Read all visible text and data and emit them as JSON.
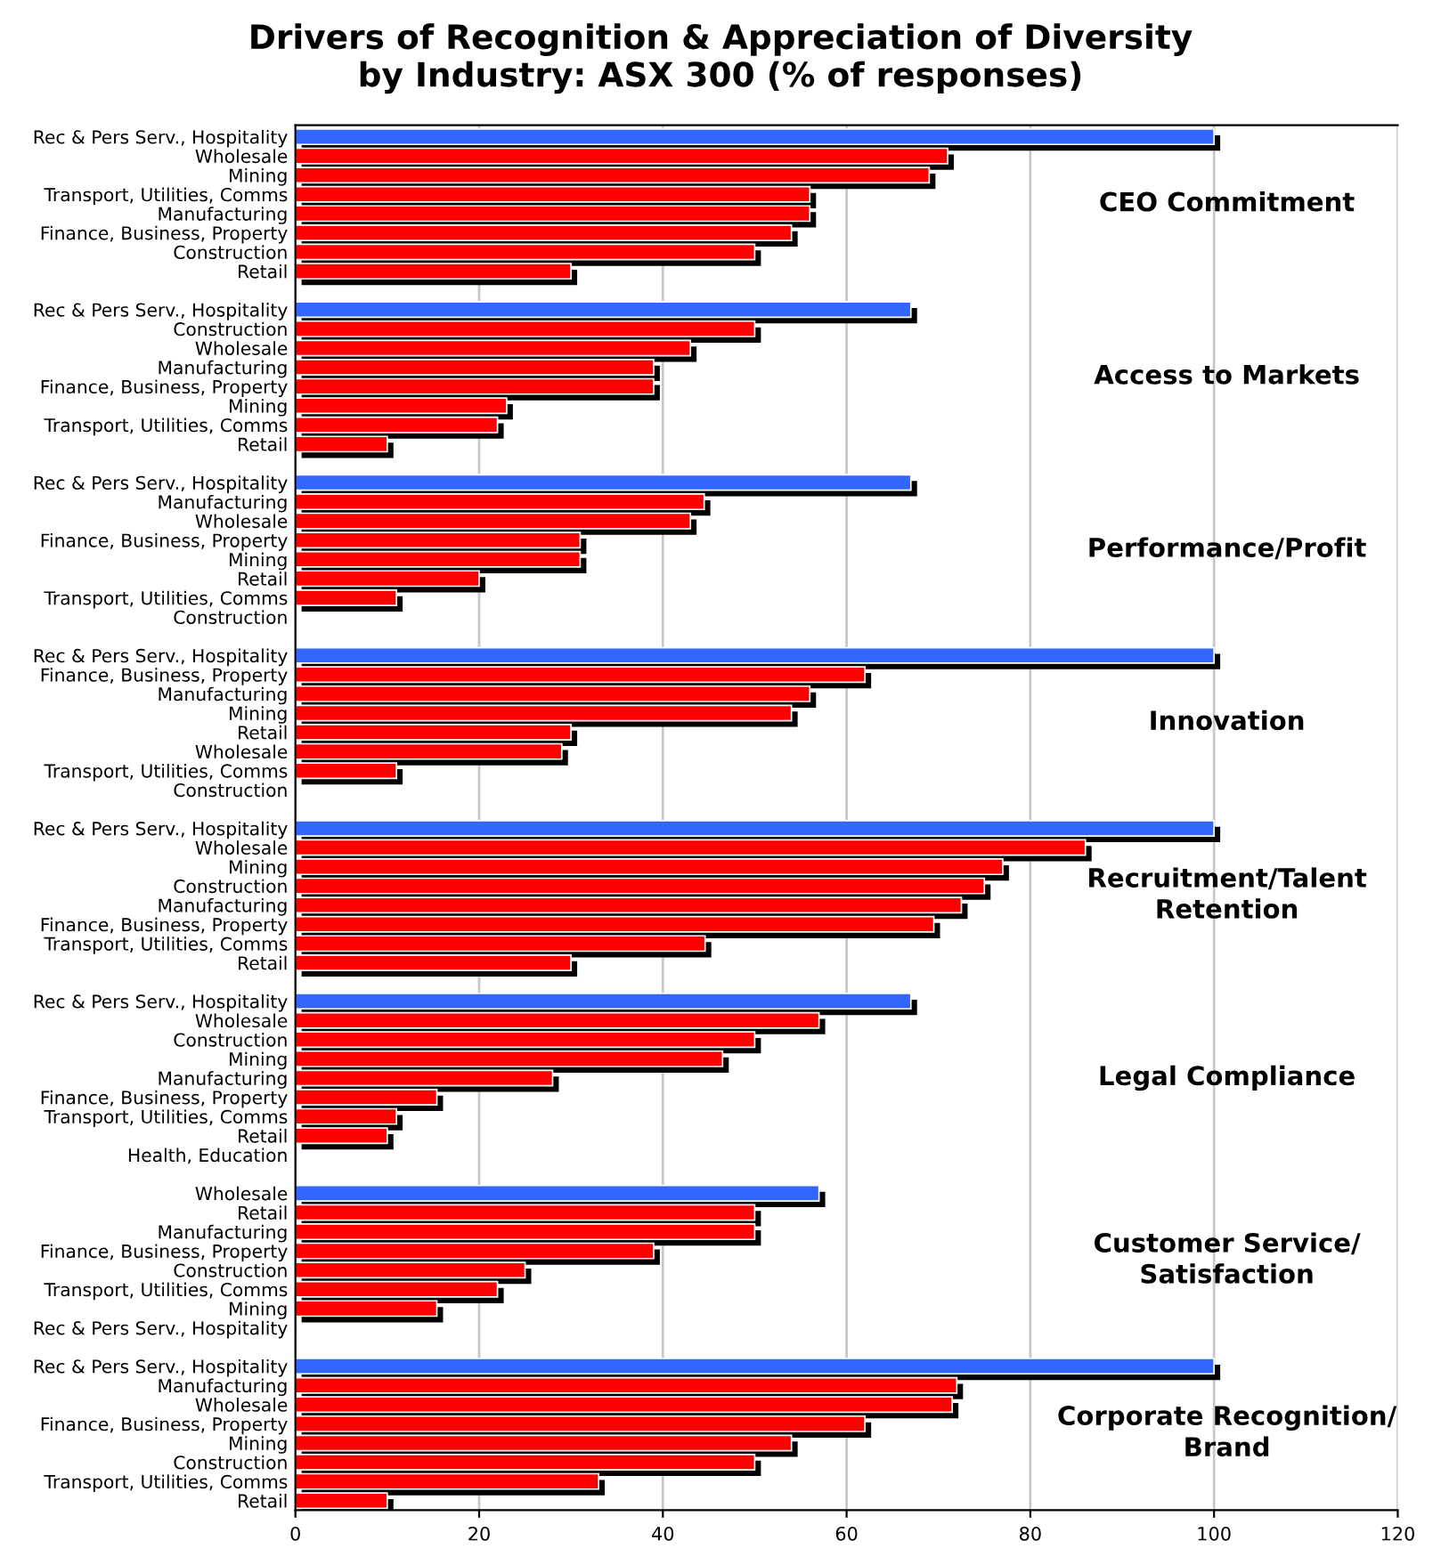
{
  "chart_data": {
    "type": "bar",
    "orientation": "horizontal",
    "title": "Drivers of Recognition & Appreciation of Diversity\nby Industry: ASX 300 (% of responses)",
    "categories": [
      "Rec & Pers Serv., Hospitality",
      "Wholesale",
      "Mining",
      "Transport, Utilities, Comms",
      "Manufacturing",
      "Finance, Business, Property",
      "Construction",
      "Retail",
      null,
      "Rec & Pers Serv., Hospitality",
      "Construction",
      "Wholesale",
      "Manufacturing",
      "Finance, Business, Property",
      "Mining",
      "Transport, Utilities, Comms",
      "Retail",
      null,
      "Rec & Pers Serv., Hospitality",
      "Manufacturing",
      "Wholesale",
      "Finance, Business, Property",
      "Mining",
      "Retail",
      "Transport, Utilities, Comms",
      "Construction",
      null,
      "Rec & Pers Serv., Hospitality",
      "Finance, Business, Property",
      "Manufacturing",
      "Mining",
      "Retail",
      "Wholesale",
      "Transport, Utilities, Comms",
      "Construction",
      null,
      "Rec & Pers Serv., Hospitality",
      "Wholesale",
      "Mining",
      "Construction",
      "Manufacturing",
      "Finance, Business, Property",
      "Transport, Utilities, Comms",
      "Retail",
      null,
      "Rec & Pers Serv., Hospitality",
      "Wholesale",
      "Construction",
      "Mining",
      "Manufacturing",
      "Finance, Business, Property",
      "Transport, Utilities, Comms",
      "Retail",
      "Health, Education",
      null,
      "Wholesale",
      "Retail",
      "Manufacturing",
      "Finance, Business, Property",
      "Construction",
      "Transport, Utilities, Comms",
      "Mining",
      "Rec & Pers Serv., Hospitality",
      null,
      "Rec & Pers Serv., Hospitality",
      "Manufacturing",
      "Wholesale",
      "Finance, Business, Property",
      "Mining",
      "Construction",
      "Transport, Utilities, Comms",
      "Retail"
    ],
    "values": [
      100,
      71,
      69,
      56,
      56,
      54,
      50,
      30,
      null,
      67,
      50,
      43,
      39,
      39,
      23,
      22,
      10,
      null,
      67,
      44.5,
      43,
      31,
      31,
      20,
      11,
      0,
      null,
      100,
      62,
      56,
      54,
      30,
      29,
      11,
      0,
      null,
      100,
      86,
      77,
      75,
      72.5,
      69.5,
      44.6,
      30,
      null,
      67,
      57,
      50,
      46.5,
      28,
      15.4,
      11,
      10,
      0,
      null,
      57,
      50,
      50,
      39,
      25,
      22,
      15.4,
      0,
      null,
      100,
      72,
      71.5,
      62,
      54,
      50,
      33,
      10
    ],
    "colors": [
      "#3366ff",
      "#ff0000",
      "#ff0000",
      "#ff0000",
      "#ff0000",
      "#ff0000",
      "#ff0000",
      "#ff0000",
      null,
      "#3366ff",
      "#ff0000",
      "#ff0000",
      "#ff0000",
      "#ff0000",
      "#ff0000",
      "#ff0000",
      "#ff0000",
      null,
      "#3366ff",
      "#ff0000",
      "#ff0000",
      "#ff0000",
      "#ff0000",
      "#ff0000",
      "#ff0000",
      "#ff0000",
      null,
      "#3366ff",
      "#ff0000",
      "#ff0000",
      "#ff0000",
      "#ff0000",
      "#ff0000",
      "#ff0000",
      "#ff0000",
      null,
      "#3366ff",
      "#ff0000",
      "#ff0000",
      "#ff0000",
      "#ff0000",
      "#ff0000",
      "#ff0000",
      "#ff0000",
      null,
      "#3366ff",
      "#ff0000",
      "#ff0000",
      "#ff0000",
      "#ff0000",
      "#ff0000",
      "#ff0000",
      "#ff0000",
      "#ff0000",
      null,
      "#3366ff",
      "#ff0000",
      "#ff0000",
      "#ff0000",
      "#ff0000",
      "#ff0000",
      "#ff0000",
      "#ff0000",
      null,
      "#3366ff",
      "#ff0000",
      "#ff0000",
      "#ff0000",
      "#ff0000",
      "#ff0000",
      "#ff0000",
      "#ff0000"
    ],
    "xlim": [
      0,
      120
    ],
    "xticks": [
      0,
      20,
      40,
      60,
      80,
      100,
      120
    ],
    "grid": "x",
    "annotations": [
      "CEO Commitment",
      "Access to Markets",
      "Performance/Profit",
      "Innovation",
      "Recruitment/Talent\nRetention",
      "Legal Compliance",
      "Customer Service/\nSatisfaction",
      "Corporate Recognition/\nBrand"
    ]
  }
}
